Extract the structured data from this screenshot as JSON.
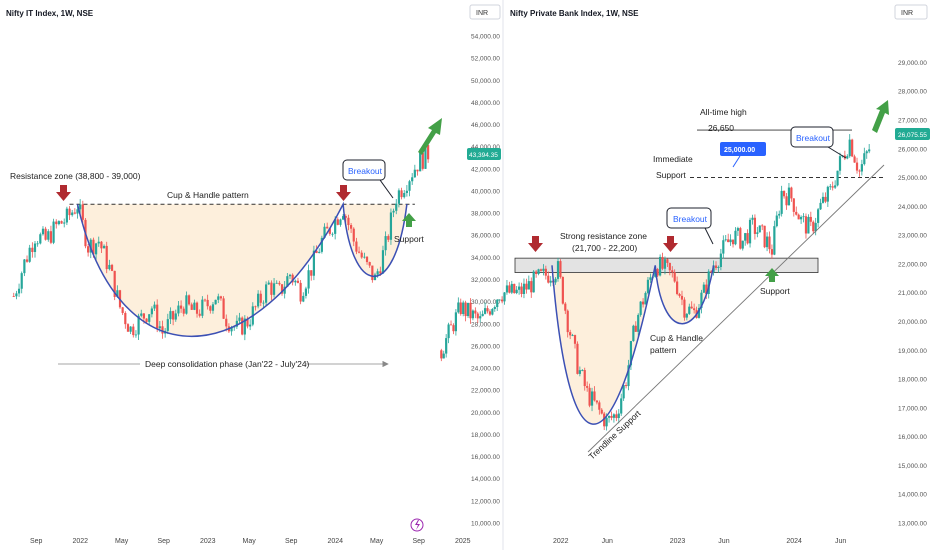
{
  "chart_data": [
    {
      "type": "candlestick",
      "title": "Nifty IT Index, 1W, NSE",
      "currency": "INR",
      "y_ticks": [
        "10,000.00",
        "12,000.00",
        "14,000.00",
        "16,000.00",
        "18,000.00",
        "20,000.00",
        "22,000.00",
        "24,000.00",
        "26,000.00",
        "28,000.00",
        "30,000.00",
        "32,000.00",
        "34,000.00",
        "36,000.00",
        "38,000.00",
        "40,000.00",
        "42,000.00",
        "44,000.00",
        "46,000.00",
        "48,000.00",
        "50,000.00",
        "52,000.00",
        "54,000.00"
      ],
      "ylim": [
        10000,
        54000
      ],
      "x_ticks": [
        "Sep",
        "2022",
        "May",
        "Sep",
        "2023",
        "May",
        "Sep",
        "2024",
        "May",
        "Sep",
        "2025"
      ],
      "x_tick_dates": [
        "2021-09",
        "2022-01",
        "2022-05",
        "2022-09",
        "2023-01",
        "2023-05",
        "2023-09",
        "2024-01",
        "2024-05",
        "2024-09",
        "2025-01"
      ],
      "last_price": "43,394.35",
      "series": [
        {
          "values": [
            {
              "x": "2021-07",
              "c": 30500
            },
            {
              "x": "2021-08",
              "c": 33500
            },
            {
              "x": "2021-09",
              "c": 36000
            },
            {
              "x": "2021-10",
              "c": 35500
            },
            {
              "x": "2021-11",
              "c": 36800
            },
            {
              "x": "2021-12",
              "c": 37500
            },
            {
              "x": "2022-01",
              "c": 38800
            },
            {
              "x": "2022-02",
              "c": 35000
            },
            {
              "x": "2022-03",
              "c": 35500
            },
            {
              "x": "2022-04",
              "c": 33000
            },
            {
              "x": "2022-05",
              "c": 29500
            },
            {
              "x": "2022-06",
              "c": 27500
            },
            {
              "x": "2022-07",
              "c": 28500
            },
            {
              "x": "2022-08",
              "c": 29500
            },
            {
              "x": "2022-09",
              "c": 27200
            },
            {
              "x": "2022-10",
              "c": 28500
            },
            {
              "x": "2022-11",
              "c": 29800
            },
            {
              "x": "2022-12",
              "c": 29000
            },
            {
              "x": "2023-01",
              "c": 29500
            },
            {
              "x": "2023-02",
              "c": 30500
            },
            {
              "x": "2023-03",
              "c": 28500
            },
            {
              "x": "2023-04",
              "c": 27500
            },
            {
              "x": "2023-05",
              "c": 28200
            },
            {
              "x": "2023-06",
              "c": 29800
            },
            {
              "x": "2023-07",
              "c": 31500
            },
            {
              "x": "2023-08",
              "c": 30800
            },
            {
              "x": "2023-09",
              "c": 32500
            },
            {
              "x": "2023-10",
              "c": 31000
            },
            {
              "x": "2023-11",
              "c": 33000
            },
            {
              "x": "2023-12",
              "c": 35500
            },
            {
              "x": "2024-01",
              "c": 37000
            },
            {
              "x": "2024-02",
              "c": 38500
            },
            {
              "x": "2024-03",
              "c": 35500
            },
            {
              "x": "2024-04",
              "c": 33500
            },
            {
              "x": "2024-05",
              "c": 32000
            },
            {
              "x": "2024-06",
              "c": 35000
            },
            {
              "x": "2024-07",
              "c": 39500
            },
            {
              "x": "2024-08",
              "c": 41000
            },
            {
              "x": "2024-09",
              "c": 42500
            },
            {
              "x": "2024-10",
              "c": 43400
            }
          ]
        }
      ],
      "annotations": {
        "resistance": "Resistance zone (38,800 - 39,000)",
        "pattern": "Cup & Handle pattern",
        "breakout": "Breakout",
        "support": "Support",
        "consolidation": "Deep consolidation phase (Jan'22 - July'24)"
      },
      "resistance_level": 38800,
      "resistance_start": "2022-01",
      "resistance_end": "2024-08",
      "grid": false
    },
    {
      "type": "candlestick",
      "title": "Nifty Private Bank Index, 1W, NSE",
      "currency": "INR",
      "y_ticks": [
        "13,000.00",
        "14,000.00",
        "15,000.00",
        "16,000.00",
        "17,000.00",
        "18,000.00",
        "19,000.00",
        "20,000.00",
        "21,000.00",
        "22,000.00",
        "23,000.00",
        "24,000.00",
        "25,000.00",
        "26,000.00",
        "27,000.00",
        "28,000.00",
        "29,000.00"
      ],
      "ylim": [
        13000,
        29500
      ],
      "x_ticks": [
        "2022",
        "Jun",
        "2023",
        "Jun",
        "2024",
        "Jun"
      ],
      "x_tick_dates": [
        "2022-01",
        "2022-06",
        "2023-01",
        "2023-06",
        "2024-01",
        "2024-06"
      ],
      "last_price": "26,075.55",
      "level_label": "25,000.00",
      "series": [
        {
          "values": [
            {
              "x": "2021-01",
              "c": 19000
            },
            {
              "x": "2021-03",
              "c": 20500
            },
            {
              "x": "2021-05",
              "c": 20000
            },
            {
              "x": "2021-07",
              "c": 21000
            },
            {
              "x": "2021-09",
              "c": 21000
            },
            {
              "x": "2021-11",
              "c": 21500
            },
            {
              "x": "2022-01",
              "c": 21800
            },
            {
              "x": "2022-02",
              "c": 20000
            },
            {
              "x": "2022-03",
              "c": 18500
            },
            {
              "x": "2022-04",
              "c": 17500
            },
            {
              "x": "2022-05",
              "c": 17000
            },
            {
              "x": "2022-06",
              "c": 16500
            },
            {
              "x": "2022-07",
              "c": 16800
            },
            {
              "x": "2022-08",
              "c": 18000
            },
            {
              "x": "2022-09",
              "c": 20000
            },
            {
              "x": "2022-10",
              "c": 21000
            },
            {
              "x": "2022-11",
              "c": 22000
            },
            {
              "x": "2022-12",
              "c": 21800
            },
            {
              "x": "2023-01",
              "c": 21500
            },
            {
              "x": "2023-02",
              "c": 20500
            },
            {
              "x": "2023-03",
              "c": 20300
            },
            {
              "x": "2023-04",
              "c": 21000
            },
            {
              "x": "2023-05",
              "c": 22000
            },
            {
              "x": "2023-06",
              "c": 22500
            },
            {
              "x": "2023-07",
              "c": 23000
            },
            {
              "x": "2023-08",
              "c": 22800
            },
            {
              "x": "2023-09",
              "c": 23300
            },
            {
              "x": "2023-10",
              "c": 23000
            },
            {
              "x": "2023-11",
              "c": 22500
            },
            {
              "x": "2023-12",
              "c": 24500
            },
            {
              "x": "2024-01",
              "c": 24300
            },
            {
              "x": "2024-02",
              "c": 23500
            },
            {
              "x": "2024-03",
              "c": 23200
            },
            {
              "x": "2024-04",
              "c": 24000
            },
            {
              "x": "2024-05",
              "c": 24500
            },
            {
              "x": "2024-06",
              "c": 25500
            },
            {
              "x": "2024-07",
              "c": 26300
            },
            {
              "x": "2024-08",
              "c": 25200
            },
            {
              "x": "2024-09",
              "c": 26000
            }
          ]
        }
      ],
      "annotations": {
        "ath": "All-time high",
        "ath_value": "26,650",
        "breakout": "Breakout",
        "immediate_support": "Immediate\nSupport",
        "resistance_zone": "Strong resistance zone\n(21,700 - 22,200)",
        "breakout2": "Breakout",
        "cup_handle": "Cup & Handle\npattern",
        "support": "Support",
        "trendline": "Trendline Support"
      },
      "resistance_zone": [
        21700,
        22200
      ],
      "ath_level": 26650,
      "support_level": 25000,
      "grid": false
    }
  ],
  "colors": {
    "up": "#26a69a",
    "down": "#ef5350",
    "cup_fill": "#fdefdc",
    "cup_line": "#3c50b4",
    "arrow_down": "#b02a30",
    "arrow_up": "#43a047",
    "price_badge": "#22ab94",
    "level_badge": "#2962ff"
  },
  "icon": "lightning-icon"
}
